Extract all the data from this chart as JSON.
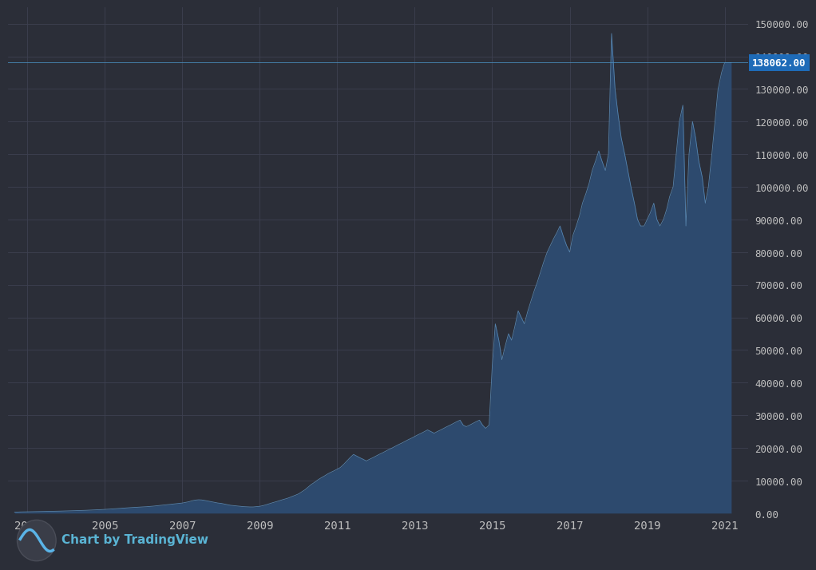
{
  "background_color": "#2b2e38",
  "plot_bg_color": "#2b2e38",
  "grid_color": "#3d4050",
  "fill_color": "#2d4a6e",
  "line_color": "#5a8ab5",
  "text_color": "#c0c0c0",
  "label_color": "#5ab4d4",
  "last_price": 138062.0,
  "last_price_bg": "#1e6bb8",
  "last_price_text": "#ffffff",
  "watermark": "Chart by TradingView",
  "xmin": 2002.5,
  "xmax": 2021.6,
  "ymin": 0,
  "ymax": 155000,
  "yticks": [
    0,
    10000,
    20000,
    30000,
    40000,
    50000,
    60000,
    70000,
    80000,
    90000,
    100000,
    110000,
    120000,
    130000,
    140000,
    150000
  ],
  "xtick_years": [
    2003,
    2005,
    2007,
    2009,
    2011,
    2013,
    2015,
    2017,
    2019,
    2021
  ],
  "data_x": [
    2002.67,
    2002.75,
    2002.83,
    2002.92,
    2003.0,
    2003.08,
    2003.17,
    2003.25,
    2003.33,
    2003.42,
    2003.5,
    2003.58,
    2003.67,
    2003.75,
    2003.83,
    2003.92,
    2004.0,
    2004.08,
    2004.17,
    2004.25,
    2004.33,
    2004.42,
    2004.5,
    2004.58,
    2004.67,
    2004.75,
    2004.83,
    2004.92,
    2005.0,
    2005.08,
    2005.17,
    2005.25,
    2005.33,
    2005.42,
    2005.5,
    2005.58,
    2005.67,
    2005.75,
    2005.83,
    2005.92,
    2006.0,
    2006.08,
    2006.17,
    2006.25,
    2006.33,
    2006.42,
    2006.5,
    2006.58,
    2006.67,
    2006.75,
    2006.83,
    2006.92,
    2007.0,
    2007.08,
    2007.17,
    2007.25,
    2007.33,
    2007.42,
    2007.5,
    2007.58,
    2007.67,
    2007.75,
    2007.83,
    2007.92,
    2008.0,
    2008.08,
    2008.17,
    2008.25,
    2008.33,
    2008.42,
    2008.5,
    2008.58,
    2008.67,
    2008.75,
    2008.83,
    2008.92,
    2009.0,
    2009.08,
    2009.17,
    2009.25,
    2009.33,
    2009.42,
    2009.5,
    2009.58,
    2009.67,
    2009.75,
    2009.83,
    2009.92,
    2010.0,
    2010.08,
    2010.17,
    2010.25,
    2010.33,
    2010.42,
    2010.5,
    2010.58,
    2010.67,
    2010.75,
    2010.83,
    2010.92,
    2011.0,
    2011.08,
    2011.17,
    2011.25,
    2011.33,
    2011.42,
    2011.5,
    2011.58,
    2011.67,
    2011.75,
    2011.83,
    2011.92,
    2012.0,
    2012.08,
    2012.17,
    2012.25,
    2012.33,
    2012.42,
    2012.5,
    2012.58,
    2012.67,
    2012.75,
    2012.83,
    2012.92,
    2013.0,
    2013.08,
    2013.17,
    2013.25,
    2013.33,
    2013.42,
    2013.5,
    2013.58,
    2013.67,
    2013.75,
    2013.83,
    2013.92,
    2014.0,
    2014.08,
    2014.17,
    2014.25,
    2014.33,
    2014.42,
    2014.5,
    2014.58,
    2014.67,
    2014.75,
    2014.83,
    2014.92,
    2015.0,
    2015.08,
    2015.17,
    2015.25,
    2015.33,
    2015.42,
    2015.5,
    2015.58,
    2015.67,
    2015.75,
    2015.83,
    2015.92,
    2016.0,
    2016.08,
    2016.17,
    2016.25,
    2016.33,
    2016.42,
    2016.5,
    2016.58,
    2016.67,
    2016.75,
    2016.83,
    2016.92,
    2017.0,
    2017.08,
    2017.17,
    2017.25,
    2017.33,
    2017.42,
    2017.5,
    2017.58,
    2017.67,
    2017.75,
    2017.83,
    2017.92,
    2018.0,
    2018.08,
    2018.17,
    2018.25,
    2018.33,
    2018.42,
    2018.5,
    2018.58,
    2018.67,
    2018.75,
    2018.83,
    2018.92,
    2019.0,
    2019.08,
    2019.17,
    2019.25,
    2019.33,
    2019.42,
    2019.5,
    2019.58,
    2019.67,
    2019.75,
    2019.83,
    2019.92,
    2020.0,
    2020.08,
    2020.17,
    2020.25,
    2020.33,
    2020.42,
    2020.5,
    2020.58,
    2020.67,
    2020.75,
    2020.83,
    2020.92,
    2021.0,
    2021.08,
    2021.17
  ],
  "data_y": [
    300,
    350,
    380,
    400,
    420,
    440,
    460,
    480,
    500,
    520,
    540,
    560,
    580,
    600,
    620,
    650,
    680,
    710,
    740,
    770,
    800,
    830,
    870,
    910,
    950,
    1000,
    1050,
    1100,
    1150,
    1200,
    1280,
    1350,
    1420,
    1500,
    1580,
    1650,
    1700,
    1750,
    1800,
    1850,
    1900,
    1980,
    2060,
    2150,
    2250,
    2350,
    2450,
    2560,
    2680,
    2800,
    2900,
    3000,
    3100,
    3300,
    3500,
    3800,
    4000,
    4100,
    4050,
    3900,
    3700,
    3500,
    3300,
    3100,
    3000,
    2800,
    2600,
    2400,
    2300,
    2200,
    2100,
    2000,
    1950,
    1900,
    1900,
    2000,
    2100,
    2300,
    2600,
    2900,
    3200,
    3500,
    3800,
    4100,
    4400,
    4700,
    5100,
    5500,
    5900,
    6500,
    7200,
    8000,
    8800,
    9500,
    10200,
    10800,
    11400,
    12000,
    12500,
    13000,
    13500,
    14000,
    15000,
    16000,
    17000,
    18000,
    17500,
    17000,
    16500,
    16000,
    16500,
    17000,
    17500,
    18000,
    18500,
    19000,
    19500,
    20000,
    20500,
    21000,
    21500,
    22000,
    22500,
    23000,
    23500,
    24000,
    24500,
    25000,
    25500,
    25000,
    24500,
    25000,
    25500,
    26000,
    26500,
    27000,
    27500,
    28000,
    28500,
    27000,
    26500,
    27000,
    27500,
    28000,
    28500,
    27000,
    26000,
    27000,
    45000,
    58000,
    53000,
    47000,
    51000,
    55000,
    53000,
    57000,
    62000,
    60000,
    58000,
    62000,
    65000,
    68000,
    71000,
    74000,
    77000,
    80000,
    82000,
    84000,
    86000,
    88000,
    85000,
    82000,
    80000,
    85000,
    88000,
    91000,
    95000,
    98000,
    101000,
    105000,
    108000,
    111000,
    108000,
    105000,
    110000,
    147000,
    130000,
    122000,
    115000,
    110000,
    105000,
    100000,
    95000,
    90000,
    88000,
    88000,
    90000,
    92000,
    95000,
    90000,
    88000,
    90000,
    93000,
    97000,
    100000,
    110000,
    120000,
    125000,
    88000,
    110000,
    120000,
    115000,
    108000,
    103000,
    95000,
    100000,
    110000,
    120000,
    130000,
    135000,
    138062,
    138062,
    138062
  ]
}
